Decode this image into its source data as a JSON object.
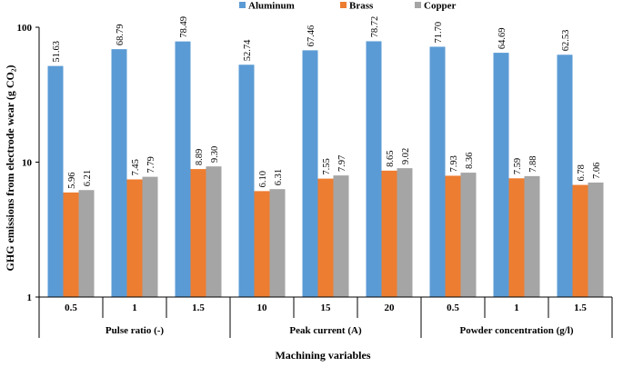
{
  "chart_data": {
    "type": "bar",
    "scale": "log",
    "ylim": [
      1,
      100
    ],
    "yticks": [
      "1",
      "10",
      "100"
    ],
    "ylabel": "GHG emissions from electrode wear (g CO₂)",
    "xlabel": "Machining variables",
    "legend_position": "top",
    "categories": [
      "0.5",
      "1",
      "1.5",
      "10",
      "15",
      "20",
      "0.5",
      "1",
      "1.5"
    ],
    "groups": [
      {
        "label": "Pulse ratio (-)",
        "span": 3
      },
      {
        "label": "Peak current (A)",
        "span": 3
      },
      {
        "label": "Powder concentration (g/l)",
        "span": 3
      }
    ],
    "series": [
      {
        "name": "Aluminum",
        "color": "#5B9BD5",
        "values": [
          51.63,
          68.79,
          78.49,
          52.74,
          67.46,
          78.72,
          71.7,
          64.69,
          62.53
        ],
        "labels": [
          "51.63",
          "68.79",
          "78.49",
          "52.74",
          "67.46",
          "78.72",
          "71.70",
          "64.69",
          "62.53"
        ]
      },
      {
        "name": "Brass",
        "color": "#ED7D31",
        "values": [
          5.96,
          7.45,
          8.89,
          6.1,
          7.55,
          8.65,
          7.93,
          7.59,
          6.78
        ],
        "labels": [
          "5.96",
          "7.45",
          "8.89",
          "6.10",
          "7.55",
          "8.65",
          "7.93",
          "7.59",
          "6.78"
        ]
      },
      {
        "name": "Copper",
        "color": "#A5A5A5",
        "values": [
          6.21,
          7.79,
          9.3,
          6.31,
          7.97,
          9.02,
          8.36,
          7.88,
          7.06
        ],
        "labels": [
          "6.21",
          "7.79",
          "9.30",
          "6.31",
          "7.97",
          "9.02",
          "8.36",
          "7.88",
          "7.06"
        ]
      }
    ]
  }
}
